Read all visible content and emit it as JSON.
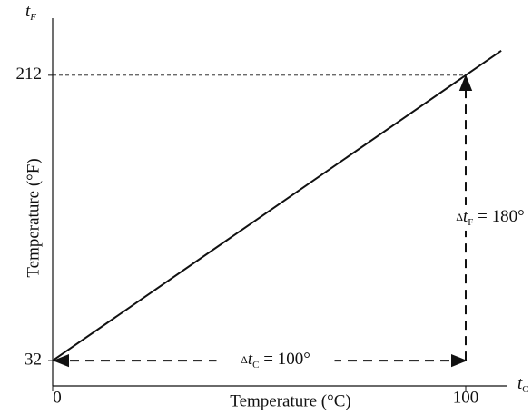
{
  "chart_data": {
    "type": "line",
    "x_label": "Temperature (°C)",
    "y_label": "Temperature (°F)",
    "x_symbol": {
      "base": "t",
      "sub": "C"
    },
    "y_symbol": {
      "base": "t",
      "sub": "F"
    },
    "annotations": [
      {
        "prefix": "Δ",
        "base": "t",
        "sub": "F",
        "text": " = 180°"
      },
      {
        "prefix": "Δ",
        "base": "t",
        "sub": "C",
        "text": " = 100°"
      }
    ],
    "x": [
      0,
      100,
      108.6
    ],
    "series": [
      {
        "color": "#111111",
        "values": [
          32,
          212,
          227.5
        ]
      }
    ],
    "xlim": [
      0,
      110
    ],
    "ylim": [
      16,
      248
    ],
    "xticks": [
      0,
      100
    ],
    "yticks": [
      32,
      212
    ]
  }
}
